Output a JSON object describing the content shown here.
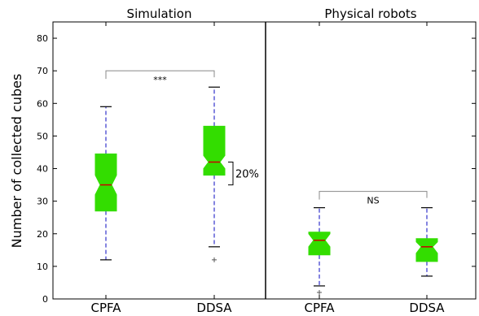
{
  "chart_data": {
    "type": "box",
    "ylabel": "Number of collected cubes",
    "ylim": [
      0,
      85
    ],
    "yticks": [
      0,
      10,
      20,
      30,
      40,
      50,
      60,
      70,
      80
    ],
    "box_color": "#33dd00",
    "median_color": "#cc0000",
    "whisker_color": "#3333cc",
    "panels": [
      {
        "title": "Simulation",
        "boxes": [
          {
            "label": "CPFA",
            "q1": 27,
            "notch_low": 32,
            "median": 35,
            "notch_high": 38,
            "q3": 44.5,
            "whisker_low": 12,
            "whisker_high": 59,
            "outliers": []
          },
          {
            "label": "DDSA",
            "q1": 38,
            "notch_low": 40,
            "median": 42,
            "notch_high": 44,
            "q3": 53,
            "whisker_low": 16,
            "whisker_high": 65,
            "outliers": [
              12
            ]
          }
        ],
        "bracket": {
          "between": [
            "CPFA",
            "DDSA"
          ],
          "y": 70,
          "label": "***"
        },
        "annotation": {
          "label": "20%",
          "box": "DDSA",
          "y_from": 35,
          "y_to": 42
        }
      },
      {
        "title": "Physical robots",
        "boxes": [
          {
            "label": "CPFA",
            "q1": 13.5,
            "notch_low": 16,
            "median": 18,
            "notch_high": 20,
            "q3": 20.5,
            "whisker_low": 4,
            "whisker_high": 28,
            "outliers": [
              2
            ]
          },
          {
            "label": "DDSA",
            "q1": 11.5,
            "notch_low": 14,
            "median": 16,
            "notch_high": 17.5,
            "q3": 18.5,
            "whisker_low": 7,
            "whisker_high": 28,
            "outliers": []
          }
        ],
        "bracket": {
          "between": [
            "CPFA",
            "DDSA"
          ],
          "y": 33,
          "label": "NS"
        }
      }
    ]
  }
}
